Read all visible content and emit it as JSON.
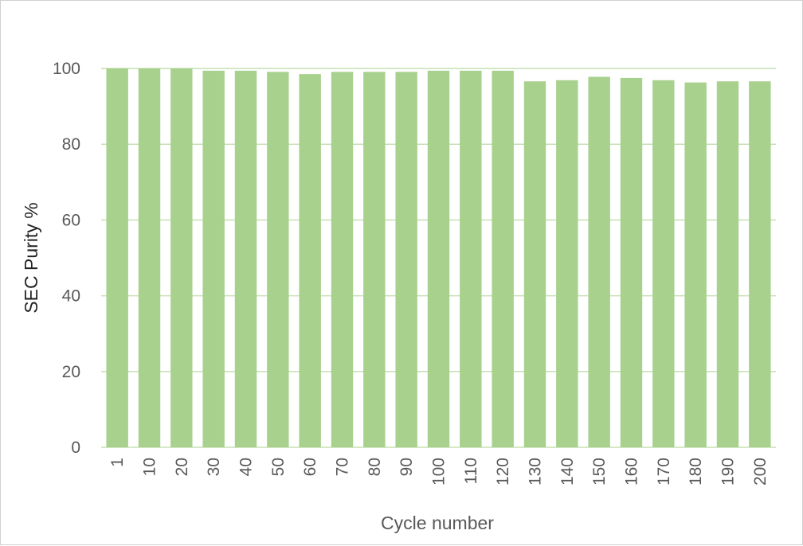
{
  "chart_data": {
    "type": "bar",
    "title": "",
    "xlabel": "Cycle number",
    "ylabel": "SEC Purity %",
    "ylim": [
      0,
      100
    ],
    "yticks": [
      0,
      20,
      40,
      60,
      80,
      100
    ],
    "grid": true,
    "legend": "none",
    "categories": [
      "1",
      "10",
      "20",
      "30",
      "40",
      "50",
      "60",
      "70",
      "80",
      "90",
      "100",
      "110",
      "120",
      "130",
      "140",
      "150",
      "160",
      "170",
      "180",
      "190",
      "200"
    ],
    "series": [
      {
        "values": [
          100.0,
          100.0,
          100.0,
          99.4,
          99.4,
          99.1,
          98.5,
          99.1,
          99.1,
          99.1,
          99.4,
          99.4,
          99.4,
          96.6,
          96.9,
          97.8,
          97.5,
          96.9,
          96.3,
          96.6,
          96.6
        ]
      }
    ],
    "colors": {
      "bar": "#a9d18e",
      "grid": "#c6e0b4",
      "tick_text": "#595959",
      "ylabel_text": "#222222"
    }
  }
}
